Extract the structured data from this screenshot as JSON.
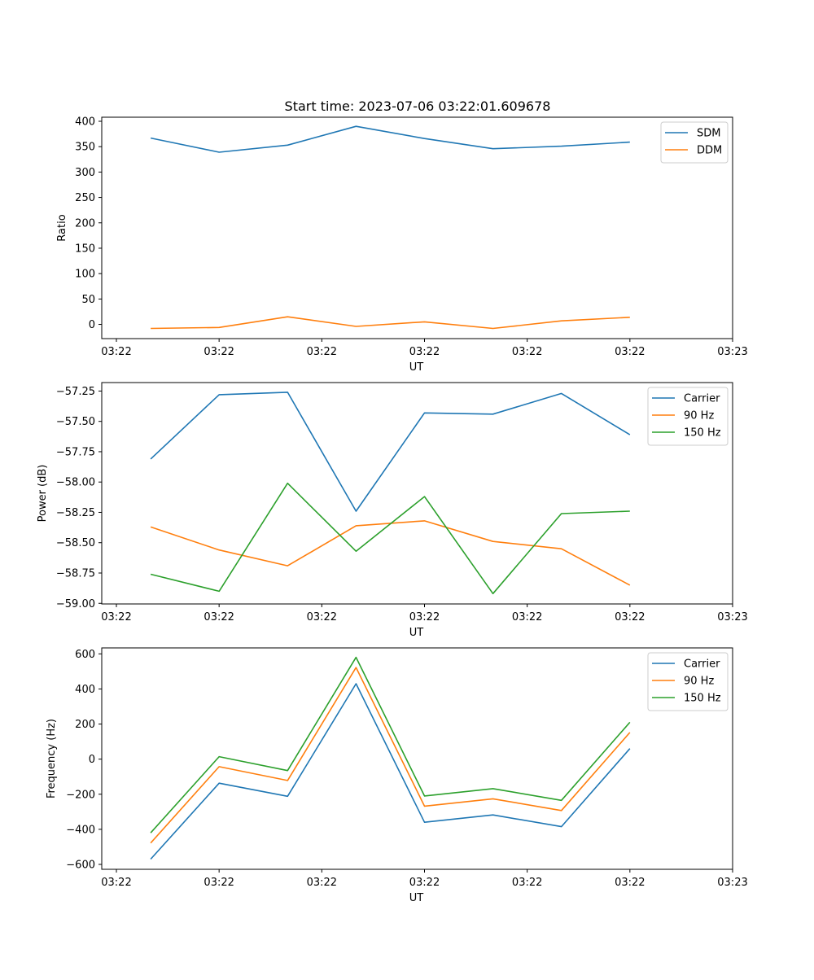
{
  "figure_title": "Start time: 2023-07-06 03:22:01.609678",
  "colors": {
    "blue": "#1f77b4",
    "orange": "#ff7f0e",
    "green": "#2ca02c"
  },
  "chart_data": [
    {
      "type": "line",
      "title": "Start time: 2023-07-06 03:22:01.609678",
      "xlabel": "UT",
      "ylabel": "Ratio",
      "x": [
        1,
        2,
        3,
        4,
        5,
        6,
        7,
        8
      ],
      "xlim": [
        0.286,
        9.5
      ],
      "xticks": [
        0.5,
        2.0,
        3.5,
        5.0,
        6.5,
        8.0,
        9.5
      ],
      "xticklabels": [
        "03:22",
        "03:22",
        "03:22",
        "03:22",
        "03:22",
        "03:22",
        "03:23"
      ],
      "ylim": [
        -28,
        408
      ],
      "yticks": [
        0,
        50,
        100,
        150,
        200,
        250,
        300,
        350,
        400
      ],
      "yticklabels": [
        "0",
        "50",
        "100",
        "150",
        "200",
        "250",
        "300",
        "350",
        "400"
      ],
      "legend": "top-right",
      "series": [
        {
          "name": "SDM",
          "color": "#1f77b4",
          "values": [
            367,
            339,
            353,
            390,
            366,
            346,
            351,
            359
          ]
        },
        {
          "name": "DDM",
          "color": "#ff7f0e",
          "values": [
            -8,
            -6,
            15,
            -4,
            5,
            -8,
            7,
            14
          ]
        }
      ]
    },
    {
      "type": "line",
      "title": "",
      "xlabel": "UT",
      "ylabel": "Power (dB)",
      "x": [
        1,
        2,
        3,
        4,
        5,
        6,
        7,
        8
      ],
      "xlim": [
        0.286,
        9.5
      ],
      "xticks": [
        0.5,
        2.0,
        3.5,
        5.0,
        6.5,
        8.0,
        9.5
      ],
      "xticklabels": [
        "03:22",
        "03:22",
        "03:22",
        "03:22",
        "03:22",
        "03:22",
        "03:23"
      ],
      "ylim": [
        -59.005,
        -57.18
      ],
      "yticks": [
        -59.0,
        -58.75,
        -58.5,
        -58.25,
        -58.0,
        -57.75,
        -57.5,
        -57.25
      ],
      "yticklabels": [
        "−59.00",
        "−58.75",
        "−58.50",
        "−58.25",
        "−58.00",
        "−57.75",
        "−57.50",
        "−57.25"
      ],
      "legend": "top-right",
      "series": [
        {
          "name": "Carrier",
          "color": "#1f77b4",
          "values": [
            -57.81,
            -57.28,
            -57.26,
            -58.24,
            -57.43,
            -57.44,
            -57.27,
            -57.61
          ]
        },
        {
          "name": "90 Hz",
          "color": "#ff7f0e",
          "values": [
            -58.37,
            -58.56,
            -58.69,
            -58.36,
            -58.32,
            -58.49,
            -58.55,
            -58.85
          ]
        },
        {
          "name": "150 Hz",
          "color": "#2ca02c",
          "values": [
            -58.76,
            -58.9,
            -58.01,
            -58.57,
            -58.12,
            -58.92,
            -58.26,
            -58.24
          ]
        }
      ]
    },
    {
      "type": "line",
      "title": "",
      "xlabel": "UT",
      "ylabel": "Frequency (Hz)",
      "x": [
        1,
        2,
        3,
        4,
        5,
        6,
        7,
        8
      ],
      "xlim": [
        0.286,
        9.5
      ],
      "xticks": [
        0.5,
        2.0,
        3.5,
        5.0,
        6.5,
        8.0,
        9.5
      ],
      "xticklabels": [
        "03:22",
        "03:22",
        "03:22",
        "03:22",
        "03:22",
        "03:22",
        "03:23"
      ],
      "ylim": [
        -628,
        634
      ],
      "yticks": [
        -600,
        -400,
        -200,
        0,
        200,
        400,
        600
      ],
      "yticklabels": [
        "−600",
        "−400",
        "−200",
        "0",
        "200",
        "400",
        "600"
      ],
      "legend": "top-right",
      "series": [
        {
          "name": "Carrier",
          "color": "#1f77b4",
          "values": [
            -570,
            -137,
            -212,
            430,
            -360,
            -318,
            -385,
            60
          ]
        },
        {
          "name": "90 Hz",
          "color": "#ff7f0e",
          "values": [
            -478,
            -43,
            -122,
            522,
            -268,
            -226,
            -293,
            152
          ]
        },
        {
          "name": "150 Hz",
          "color": "#2ca02c",
          "values": [
            -420,
            14,
            -65,
            580,
            -210,
            -168,
            -235,
            210
          ]
        }
      ]
    }
  ]
}
